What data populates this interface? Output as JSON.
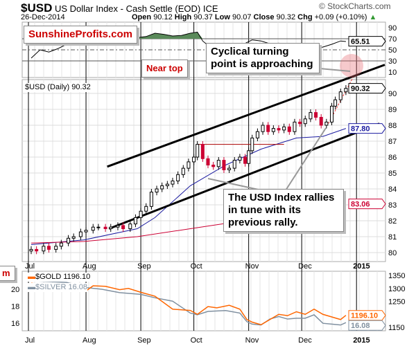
{
  "header": {
    "symbol": "$USD",
    "name": "US Dollar Index - Cash Settle (EOD)",
    "exchange": "ICE",
    "date": "26-Dec-2014",
    "open_label": "Open",
    "open": "90.12",
    "high_label": "High",
    "high": "90.37",
    "low_label": "Low",
    "low": "90.07",
    "close_label": "Close",
    "close": "90.32",
    "chg_label": "Chg",
    "chg": "+0.09 (+0.10%)",
    "watermark": "© StockCharts.com"
  },
  "brand": "SunshineProfits.com",
  "annotations": {
    "near_top": "Near top",
    "cyclical": "Cyclical turning point is approaching",
    "rally": "The USD Index rallies in tune with its previous rally.",
    "cut_label": "m"
  },
  "colors": {
    "up": "#000000",
    "down": "#cc0033",
    "ma50": "#1a1aa0",
    "ma200": "#cc0033",
    "gold": "#ff6600",
    "silver": "#8090a0",
    "rsi_fill": "#5a8a5a",
    "brand": "#cc0000"
  },
  "chart_data": [
    {
      "type": "line",
      "name": "RSI",
      "yticks": [
        "90",
        "70",
        "50",
        "30",
        "10"
      ],
      "ylim": [
        0,
        100
      ],
      "last_label": "65.51",
      "x": [
        0,
        5,
        10,
        15,
        20,
        25,
        30,
        35,
        40,
        45,
        50,
        55,
        60,
        65,
        70,
        75,
        80,
        85,
        90,
        94,
        97,
        100,
        105,
        110,
        115,
        120,
        125,
        130,
        135,
        140,
        145,
        150,
        155,
        160,
        165,
        170,
        175,
        178
      ],
      "values": [
        35,
        50,
        46,
        52,
        60,
        64,
        68,
        67,
        72,
        65,
        62,
        69,
        72,
        74,
        80,
        78,
        75,
        76,
        80,
        82,
        66,
        58,
        54,
        60,
        55,
        60,
        68,
        66,
        61,
        62,
        60,
        61,
        60,
        52,
        55,
        60,
        66,
        65
      ]
    },
    {
      "type": "candlestick",
      "name": "$USD (Daily)",
      "legend": "$USD (Daily) 90.32",
      "ylim": [
        79.6,
        90.9
      ],
      "yticks": [
        "90",
        "89",
        "88",
        "87",
        "86",
        "85",
        "84",
        "83",
        "82",
        "81",
        "80"
      ],
      "xticks": [
        "Jul",
        "Aug",
        "Sep",
        "Oct",
        "Nov",
        "Dec",
        "2015"
      ],
      "xtick_days": [
        0,
        31,
        62,
        92,
        123,
        153,
        184
      ],
      "x": [
        0,
        3,
        7,
        10,
        14,
        17,
        21,
        24,
        28,
        31,
        35,
        38,
        42,
        45,
        49,
        52,
        56,
        59,
        62,
        65,
        68,
        71,
        74,
        77,
        80,
        83,
        86,
        89,
        92,
        94,
        97,
        100,
        103,
        106,
        109,
        112,
        115,
        118,
        121,
        123,
        125,
        128,
        131,
        134,
        137,
        140,
        143,
        146,
        149,
        152,
        155,
        158,
        161,
        164,
        167,
        170,
        172,
        175,
        178
      ],
      "close": [
        80.2,
        80.1,
        80.4,
        80.2,
        80.4,
        80.6,
        80.9,
        81.0,
        81.3,
        81.4,
        81.6,
        81.6,
        81.5,
        81.6,
        81.7,
        81.5,
        81.8,
        82.2,
        82.6,
        82.9,
        83.8,
        84.0,
        84.2,
        84.3,
        84.5,
        84.9,
        85.3,
        85.7,
        86.0,
        86.8,
        85.9,
        85.5,
        85.4,
        85.8,
        85.2,
        85.3,
        85.8,
        86.0,
        85.6,
        86.4,
        87.2,
        87.6,
        88.0,
        87.6,
        87.8,
        87.7,
        87.9,
        87.6,
        88.2,
        88.1,
        88.4,
        88.8,
        88.5,
        88.0,
        88.2,
        89.2,
        89.6,
        90.1,
        90.32
      ],
      "ma50": {
        "label": "87.80",
        "x": [
          0,
          30,
          60,
          70,
          90,
          110,
          130,
          150,
          165,
          178
        ],
        "values": [
          80.5,
          80.8,
          81.5,
          82.2,
          84.2,
          85.5,
          86.5,
          87.2,
          87.3,
          87.8
        ]
      },
      "ma200": {
        "label": "83.06",
        "x": [
          0,
          30,
          60,
          90,
          120,
          150,
          178
        ],
        "values": [
          80.6,
          80.7,
          81.0,
          81.5,
          82.0,
          82.5,
          83.06
        ]
      },
      "last_label": "90.32",
      "trendlines": [
        {
          "x": [
            43,
            200
          ],
          "y": [
            85.4,
            91.8
          ]
        },
        {
          "x": [
            44,
            197
          ],
          "y": [
            81.5,
            88.1
          ]
        }
      ]
    },
    {
      "type": "line",
      "name": "Gold/Silver",
      "yticks_right": [
        "1350",
        "1300",
        "1250",
        "1150"
      ],
      "yticks_left": [
        "20",
        "18",
        "16"
      ],
      "ylim_right": [
        1130,
        1360
      ],
      "ylim_left": [
        15.2,
        21.5
      ],
      "series": [
        {
          "name": "$GOLD",
          "legend": "$GOLD 1196.10",
          "last_label": "1196.10",
          "x": [
            0,
            10,
            20,
            25,
            31,
            35,
            42,
            50,
            55,
            62,
            70,
            80,
            90,
            94,
            100,
            105,
            112,
            118,
            122,
            125,
            130,
            135,
            140,
            145,
            150,
            155,
            160,
            165,
            170,
            175,
            178
          ],
          "values": [
            1320,
            1310,
            1312,
            1295,
            1290,
            1310,
            1308,
            1295,
            1300,
            1285,
            1270,
            1220,
            1215,
            1200,
            1230,
            1225,
            1235,
            1220,
            1180,
            1170,
            1160,
            1180,
            1200,
            1195,
            1210,
            1200,
            1220,
            1200,
            1190,
            1180,
            1196.1
          ]
        },
        {
          "name": "$SILVER",
          "legend": "$SILVER 16.08",
          "last_label": "16.08",
          "x": [
            0,
            20,
            31,
            40,
            50,
            62,
            70,
            80,
            90,
            94,
            100,
            110,
            118,
            122,
            125,
            130,
            135,
            140,
            145,
            150,
            155,
            160,
            165,
            170,
            175,
            178
          ],
          "values": [
            21.0,
            20.8,
            20.2,
            20.0,
            19.6,
            19.4,
            19.0,
            18.6,
            17.2,
            17.0,
            17.4,
            17.5,
            17.2,
            16.2,
            15.9,
            15.8,
            16.5,
            16.8,
            16.5,
            16.6,
            16.6,
            17.0,
            16.0,
            15.9,
            15.8,
            16.08
          ]
        }
      ]
    }
  ]
}
